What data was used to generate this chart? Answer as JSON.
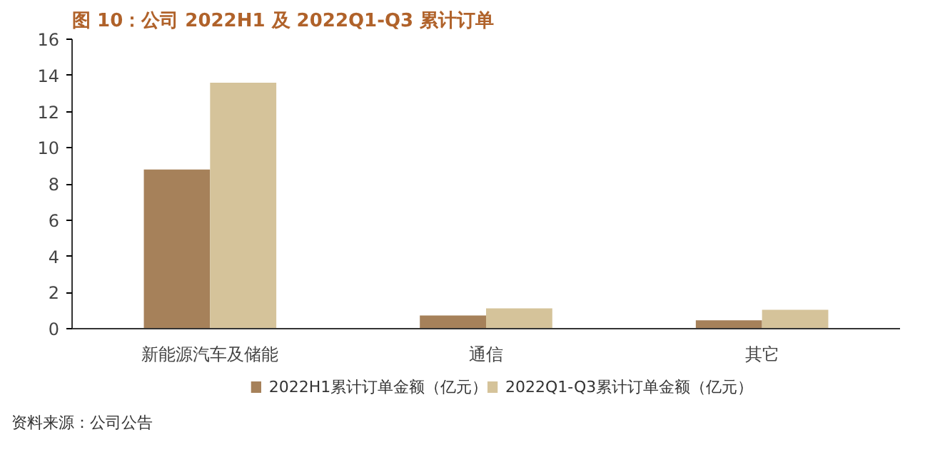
{
  "chart_data": {
    "type": "bar",
    "title": "图 10：公司 2022H1 及 2022Q1-Q3 累计订单",
    "categories": [
      "新能源汽车及储能",
      "通信",
      "其它"
    ],
    "series": [
      {
        "name": "2022H1累计订单金额（亿元）",
        "color": "#a6815a",
        "values": [
          8.8,
          0.73,
          0.46
        ]
      },
      {
        "name": "2022Q1-Q3累计订单金额（亿元）",
        "color": "#d5c39a",
        "values": [
          13.6,
          1.12,
          1.04
        ]
      }
    ],
    "ylim": [
      0,
      16
    ],
    "yticks": [
      0,
      2,
      4,
      6,
      8,
      10,
      12,
      14,
      16
    ],
    "grid": false,
    "legend": "bottom",
    "annotations": [
      "资料来源：公司公告"
    ]
  }
}
